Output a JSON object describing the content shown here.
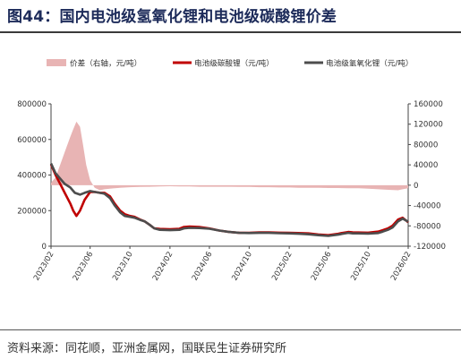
{
  "title": "图44：国内电池级氢氧化锂和电池级碳酸锂价差",
  "source": "资料来源：同花顺，亚洲金属网，国联民生证券研究所",
  "chart_data": {
    "type": "line",
    "legend_placement": "top",
    "colors": {
      "spread": "#e8b4b4",
      "carbonate": "#c00000",
      "hydroxide": "#4d4d4d"
    },
    "left_axis": {
      "ticks": [
        0,
        200000,
        400000,
        600000,
        800000
      ],
      "tick_labels": [
        "0",
        "200000",
        "400000",
        "600000",
        "800000"
      ],
      "ylim": [
        0,
        800000
      ]
    },
    "right_axis": {
      "ticks": [
        -120000,
        -80000,
        -40000,
        0,
        40000,
        80000,
        120000,
        160000
      ],
      "tick_labels": [
        "-120000",
        "-80000",
        "-40000",
        "0",
        "40000",
        "80000",
        "120000",
        "160000"
      ],
      "ylim": [
        -120000,
        160000
      ]
    },
    "x_range": [
      "2023-02-01",
      "2026-02-01"
    ],
    "x_tick_labels": [
      "2023/02",
      "2023/06",
      "2023/10",
      "2024/02",
      "2024/06",
      "2024/10",
      "2025/02",
      "2025/06",
      "2025/10",
      "2026/02"
    ],
    "x_tick_dates": [
      "2023-02-01",
      "2023-06-01",
      "2023-10-01",
      "2024-02-01",
      "2024-06-01",
      "2024-10-01",
      "2025-02-01",
      "2025-06-01",
      "2025-10-01",
      "2026-02-01"
    ],
    "series": [
      {
        "key": "spread",
        "name": "价差（右轴，元/吨）",
        "axis": "right",
        "kind": "area",
        "x": [
          "2023-02-01",
          "2023-02-15",
          "2023-03-01",
          "2023-03-15",
          "2023-04-01",
          "2023-04-10",
          "2023-04-20",
          "2023-05-01",
          "2023-05-10",
          "2023-05-20",
          "2023-06-01",
          "2023-06-15",
          "2023-07-01",
          "2023-07-15",
          "2023-08-01",
          "2023-09-01",
          "2023-10-01",
          "2023-11-01",
          "2023-12-01",
          "2024-01-01",
          "2024-02-01",
          "2024-03-01",
          "2024-04-01",
          "2024-05-01",
          "2024-06-01",
          "2024-07-01",
          "2024-08-01",
          "2024-09-01",
          "2024-10-01",
          "2024-11-01",
          "2024-12-01",
          "2025-01-01",
          "2025-02-01",
          "2025-03-01",
          "2025-04-01",
          "2025-05-01",
          "2025-06-01",
          "2025-07-01",
          "2025-08-01",
          "2025-09-01",
          "2025-10-01",
          "2025-11-01",
          "2025-12-01",
          "2026-01-01",
          "2026-01-15",
          "2026-02-01"
        ],
        "values": [
          5000,
          15000,
          40000,
          65000,
          95000,
          110000,
          125000,
          115000,
          80000,
          40000,
          10000,
          -5000,
          -10000,
          -8000,
          -7000,
          -5000,
          -4000,
          -3500,
          -3000,
          -2500,
          -2000,
          -2500,
          -2500,
          -3000,
          -3000,
          -3000,
          -3000,
          -3500,
          -3500,
          -4000,
          -4000,
          -4500,
          -4500,
          -5000,
          -5000,
          -5000,
          -5500,
          -5500,
          -6000,
          -6000,
          -7000,
          -8000,
          -9000,
          -10000,
          -8000,
          -6000
        ]
      },
      {
        "key": "carbonate",
        "name": "电池级碳酸锂（元/吨）",
        "axis": "left",
        "kind": "line",
        "x": [
          "2023-02-01",
          "2023-02-15",
          "2023-03-01",
          "2023-03-15",
          "2023-04-01",
          "2023-04-10",
          "2023-04-20",
          "2023-05-01",
          "2023-05-15",
          "2023-06-01",
          "2023-06-15",
          "2023-07-01",
          "2023-07-15",
          "2023-08-01",
          "2023-08-15",
          "2023-09-01",
          "2023-09-15",
          "2023-10-01",
          "2023-10-15",
          "2023-11-01",
          "2023-11-15",
          "2023-12-01",
          "2023-12-15",
          "2024-01-01",
          "2024-02-01",
          "2024-03-01",
          "2024-03-15",
          "2024-04-01",
          "2024-05-01",
          "2024-06-01",
          "2024-07-01",
          "2024-08-01",
          "2024-09-01",
          "2024-10-01",
          "2024-11-01",
          "2024-12-01",
          "2025-01-01",
          "2025-02-01",
          "2025-03-01",
          "2025-04-01",
          "2025-05-01",
          "2025-06-01",
          "2025-07-01",
          "2025-07-15",
          "2025-08-01",
          "2025-08-15",
          "2025-09-01",
          "2025-10-01",
          "2025-11-01",
          "2025-11-15",
          "2025-12-01",
          "2025-12-15",
          "2026-01-01",
          "2026-01-15",
          "2026-02-01"
        ],
        "values": [
          460000,
          400000,
          350000,
          300000,
          240000,
          200000,
          170000,
          200000,
          260000,
          305000,
          305000,
          300000,
          300000,
          280000,
          240000,
          200000,
          180000,
          170000,
          165000,
          150000,
          140000,
          120000,
          100000,
          97000,
          95000,
          98000,
          108000,
          110000,
          108000,
          100000,
          88000,
          80000,
          75000,
          75000,
          78000,
          78000,
          76000,
          75000,
          74000,
          72000,
          66000,
          62000,
          70000,
          75000,
          80000,
          78000,
          77000,
          76000,
          82000,
          90000,
          100000,
          115000,
          150000,
          160000,
          135000
        ]
      },
      {
        "key": "hydroxide",
        "name": "电池级氢氧化锂（元/吨）",
        "axis": "left",
        "kind": "line",
        "x": [
          "2023-02-01",
          "2023-02-15",
          "2023-03-01",
          "2023-03-15",
          "2023-04-01",
          "2023-04-15",
          "2023-05-01",
          "2023-05-15",
          "2023-06-01",
          "2023-06-15",
          "2023-07-01",
          "2023-07-15",
          "2023-08-01",
          "2023-08-15",
          "2023-09-01",
          "2023-09-15",
          "2023-10-01",
          "2023-10-15",
          "2023-11-01",
          "2023-11-15",
          "2023-12-01",
          "2023-12-15",
          "2024-01-01",
          "2024-02-01",
          "2024-03-01",
          "2024-03-15",
          "2024-04-01",
          "2024-05-01",
          "2024-06-01",
          "2024-07-01",
          "2024-08-01",
          "2024-09-01",
          "2024-10-01",
          "2024-11-01",
          "2024-12-01",
          "2025-01-01",
          "2025-02-01",
          "2025-03-01",
          "2025-04-01",
          "2025-05-01",
          "2025-06-01",
          "2025-07-01",
          "2025-07-15",
          "2025-08-01",
          "2025-08-15",
          "2025-09-01",
          "2025-10-01",
          "2025-11-01",
          "2025-11-15",
          "2025-12-01",
          "2025-12-15",
          "2026-01-01",
          "2026-01-15",
          "2026-02-01"
        ],
        "values": [
          465000,
          410000,
          380000,
          350000,
          330000,
          300000,
          290000,
          300000,
          310000,
          305000,
          300000,
          295000,
          270000,
          230000,
          190000,
          170000,
          165000,
          160000,
          148000,
          140000,
          120000,
          100000,
          92000,
          90000,
          92000,
          100000,
          103000,
          102000,
          98000,
          88000,
          80000,
          75000,
          74000,
          75000,
          75000,
          73000,
          72000,
          70000,
          67000,
          62000,
          58000,
          65000,
          70000,
          75000,
          72000,
          72000,
          71000,
          74000,
          82000,
          92000,
          105000,
          140000,
          155000,
          138000
        ]
      }
    ]
  }
}
